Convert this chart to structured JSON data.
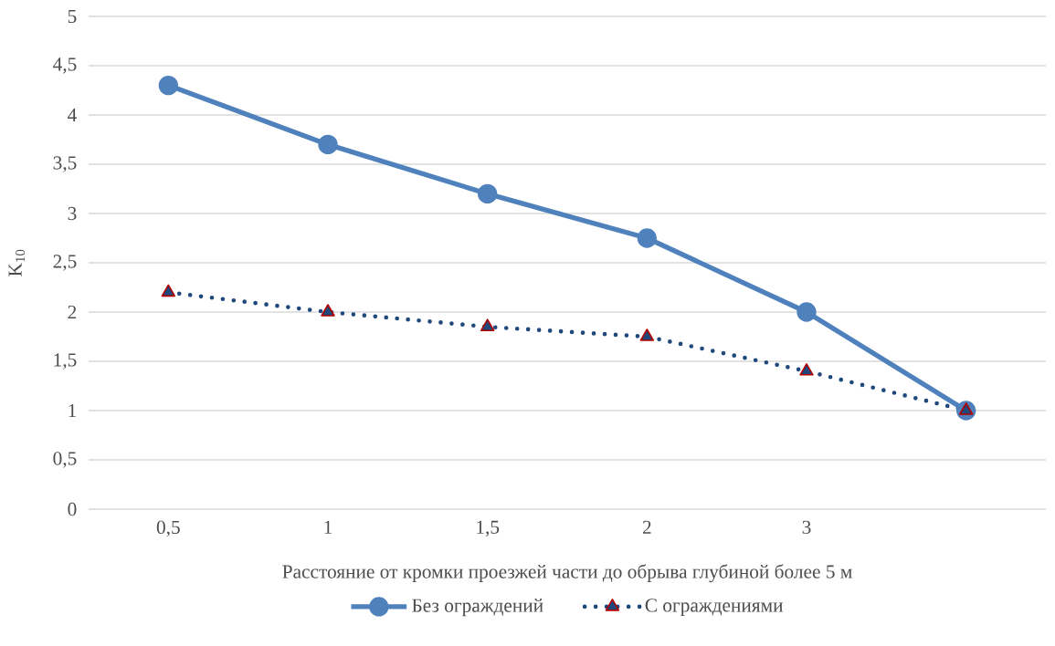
{
  "chart_data": {
    "type": "line",
    "xlabel": "Расстояние от кромки проезжей части до обрыва глубиной более 5 м",
    "ylabel": "K$_{10}$",
    "categories": [
      "0,5",
      "1",
      "1,5",
      "2",
      "3",
      null
    ],
    "series": [
      {
        "name": "Без ограждений",
        "color": "#4f81bd",
        "values": [
          4.3,
          3.7,
          3.2,
          2.75,
          2.0,
          1.0
        ],
        "marker": "circle",
        "line_style": "solid"
      },
      {
        "name": "С ограждениями",
        "color": "#1f497d",
        "values": [
          2.2,
          2.0,
          1.85,
          1.75,
          1.4,
          1.0
        ],
        "marker": "triangle",
        "line_style": "dotted"
      }
    ],
    "ylim": [
      0,
      5
    ],
    "yticks": [
      0,
      {
        "value": 0.5,
        "label": "0,5"
      },
      1,
      {
        "value": 1.5,
        "label": "1,5"
      },
      2,
      {
        "value": 2.5,
        "label": "2,5"
      },
      3,
      {
        "value": 3.5,
        "label": "3,5"
      },
      4,
      {
        "value": 4.5,
        "label": "4,5"
      },
      5
    ],
    "grid": "y",
    "legend": "bottom"
  }
}
